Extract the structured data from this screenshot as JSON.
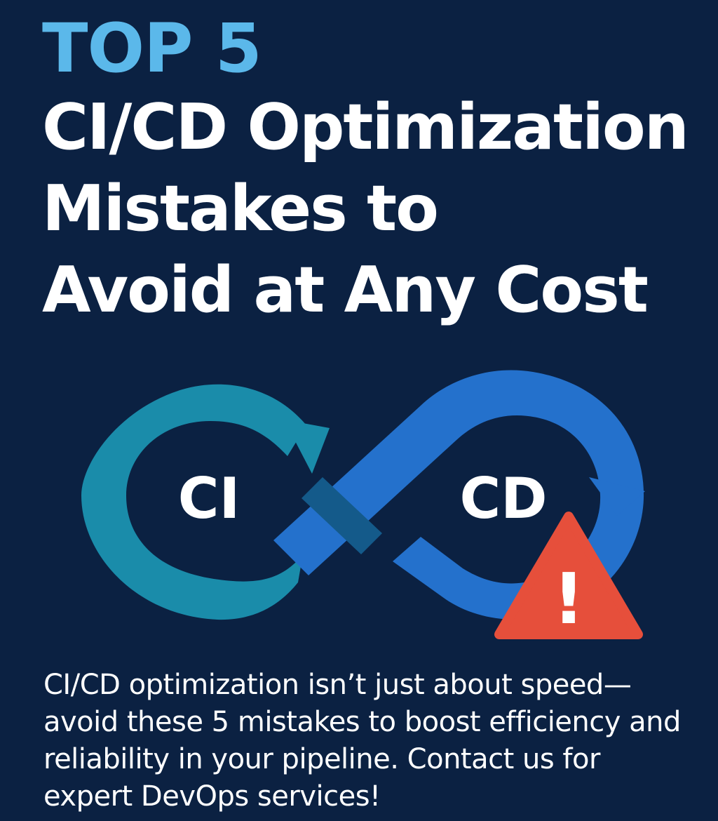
{
  "colors": {
    "background": "#0b2142",
    "accent": "#5bb8ea",
    "text": "#ffffff",
    "loop_left": "#1a8caa",
    "loop_right": "#2471cc",
    "warning": "#e64f3b"
  },
  "headline": {
    "eyebrow": "TOP 5",
    "lines": [
      "CI/CD Optimization",
      "Mistakes to",
      "Avoid at Any Cost"
    ]
  },
  "graphic": {
    "icon": "infinity-loop-icon",
    "left_label": "CI",
    "right_label": "CD",
    "warning_icon": "warning-triangle-icon",
    "warning_mark": "!"
  },
  "tagline": "CI/CD optimization isn’t just about speed—avoid these 5 mistakes to boost efficiency and reliability in your pipeline. Contact us for expert DevOps services!"
}
